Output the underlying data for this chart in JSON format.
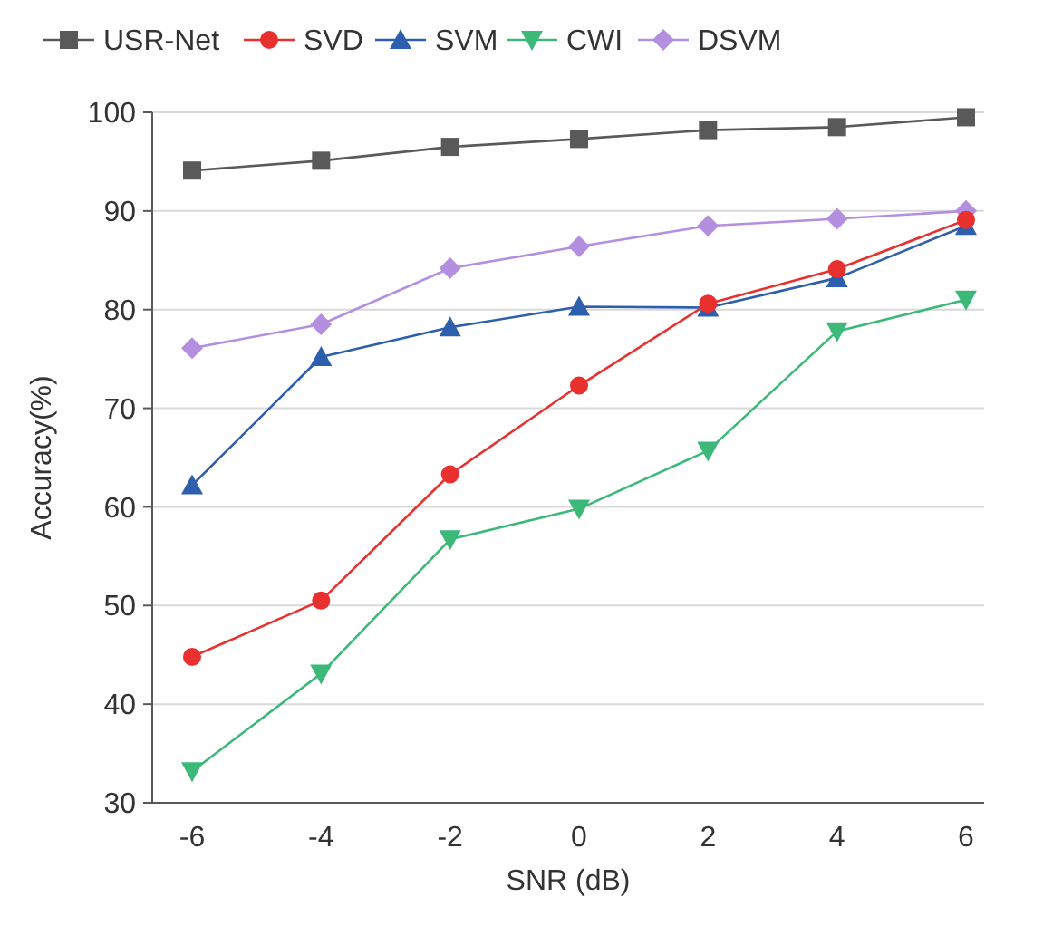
{
  "chart_data": {
    "type": "line",
    "xlabel": "SNR (dB)",
    "ylabel": "Accuracy(%)",
    "categories": [
      "-6",
      "-4",
      "-2",
      "0",
      "2",
      "4",
      "6"
    ],
    "series": [
      {
        "name": "USR-Net",
        "color": "#595959",
        "marker": "square",
        "values": [
          94.1,
          95.1,
          96.5,
          97.3,
          98.2,
          98.5,
          99.5
        ]
      },
      {
        "name": "SVD",
        "color": "#e8302e",
        "marker": "circle",
        "values": [
          44.8,
          50.5,
          63.3,
          72.3,
          80.6,
          84.1,
          89.1
        ]
      },
      {
        "name": "SVM",
        "color": "#2e5fae",
        "marker": "triangle",
        "values": [
          62.2,
          75.2,
          78.2,
          80.3,
          80.2,
          83.2,
          88.5
        ]
      },
      {
        "name": "CWI",
        "color": "#3cb878",
        "marker": "triangle-down",
        "values": [
          33.2,
          43.1,
          56.7,
          59.8,
          65.7,
          77.8,
          81.0
        ]
      },
      {
        "name": "DSVM",
        "color": "#b48fe0",
        "marker": "diamond",
        "values": [
          76.1,
          78.5,
          84.2,
          86.4,
          88.5,
          89.2,
          90.0
        ]
      }
    ],
    "ylim": [
      30,
      100
    ],
    "yticks": [
      30,
      40,
      50,
      60,
      70,
      80,
      90,
      100
    ],
    "grid": "y",
    "legend": "top",
    "line_style": "solid"
  }
}
